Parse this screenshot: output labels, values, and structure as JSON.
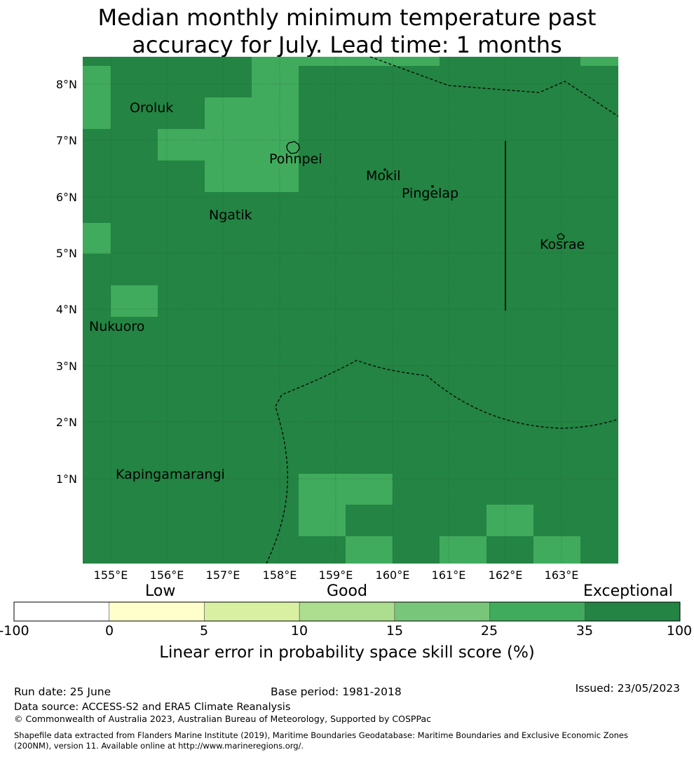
{
  "title": {
    "line1": "Median monthly minimum temperature past",
    "line2": "accuracy for July. Lead time: 1 months"
  },
  "map": {
    "lon_ticks": [
      "155°E",
      "156°E",
      "157°E",
      "158°E",
      "159°E",
      "160°E",
      "161°E",
      "162°E",
      "163°E"
    ],
    "lat_ticks": [
      "8°N",
      "7°N",
      "6°N",
      "5°N",
      "4°N",
      "3°N",
      "2°N",
      "1°N"
    ],
    "places": [
      "Oroluk",
      "Pohnpei",
      "Mokil",
      "Pingelap",
      "Ngatik",
      "Kosrae",
      "Nukuoro",
      "Kapingamarangi"
    ],
    "base_color": "#238443",
    "good_color": "#41ab5d"
  },
  "colorbar": {
    "category_low": "Low",
    "category_good": "Good",
    "category_exceptional": "Exceptional",
    "ticks": [
      "-100",
      "0",
      "5",
      "10",
      "15",
      "25",
      "35",
      "100"
    ],
    "colors": [
      "#ffffff",
      "#ffffcc",
      "#d9f0a3",
      "#addd8e",
      "#78c679",
      "#41ab5d",
      "#238443"
    ],
    "title": "Linear error in probability space skill score (%)"
  },
  "footer": {
    "run_date": "Run date: 25 June",
    "base_period": "Base period: 1981-2018",
    "issued": "Issued: 23/05/2023",
    "data_source": "Data source: ACCESS-S2 and ERA5 Climate Reanalysis",
    "copyright": "© Commonwealth of Australia 2023, Australian Bureau of Meteorology, Supported by COSPPac",
    "shapefile_line1": "Shapefile data extracted from Flanders Marine Institute (2019), Maritime Boundaries Geodatabase: Maritime Boundaries and Exclusive Economic Zones",
    "shapefile_line2": "(200NM), version 11. Available online at http://www.marineregions.org/."
  }
}
